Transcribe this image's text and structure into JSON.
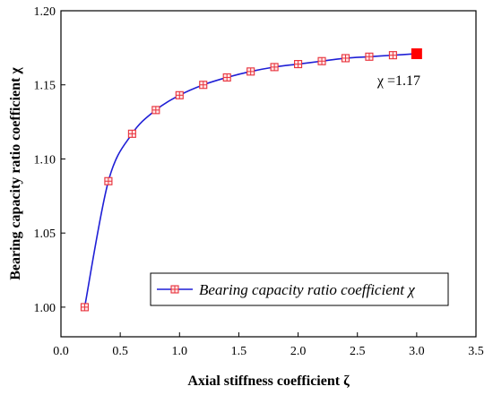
{
  "chart_data": {
    "type": "line",
    "xlabel": "Axial stiffness coefficient ζ",
    "ylabel": "Bearing capacity ratio coefficient χ",
    "xlim": [
      0.0,
      3.5
    ],
    "ylim": [
      0.98,
      1.2
    ],
    "xticks": [
      "0.0",
      "0.5",
      "1.0",
      "1.5",
      "2.0",
      "2.5",
      "3.0",
      "3.5"
    ],
    "yticks": [
      "1.00",
      "1.05",
      "1.10",
      "1.15",
      "1.20"
    ],
    "grid": false,
    "legend_position": "bottom-right",
    "series": [
      {
        "name": "Bearing capacity ratio coefficient χ",
        "color": "#1f1fd6",
        "marker_color": "#e8323c",
        "x": [
          0.2,
          0.4,
          0.6,
          0.8,
          1.0,
          1.2,
          1.4,
          1.6,
          1.8,
          2.0,
          2.2,
          2.4,
          2.6,
          2.8
        ],
        "y": [
          1.0,
          1.085,
          1.117,
          1.133,
          1.143,
          1.15,
          1.155,
          1.159,
          1.162,
          1.164,
          1.166,
          1.168,
          1.169,
          1.17
        ]
      }
    ],
    "annotation": {
      "text": "χ =1.17",
      "x": 3.0,
      "y": 1.171,
      "marker_color": "#ff0000"
    }
  }
}
